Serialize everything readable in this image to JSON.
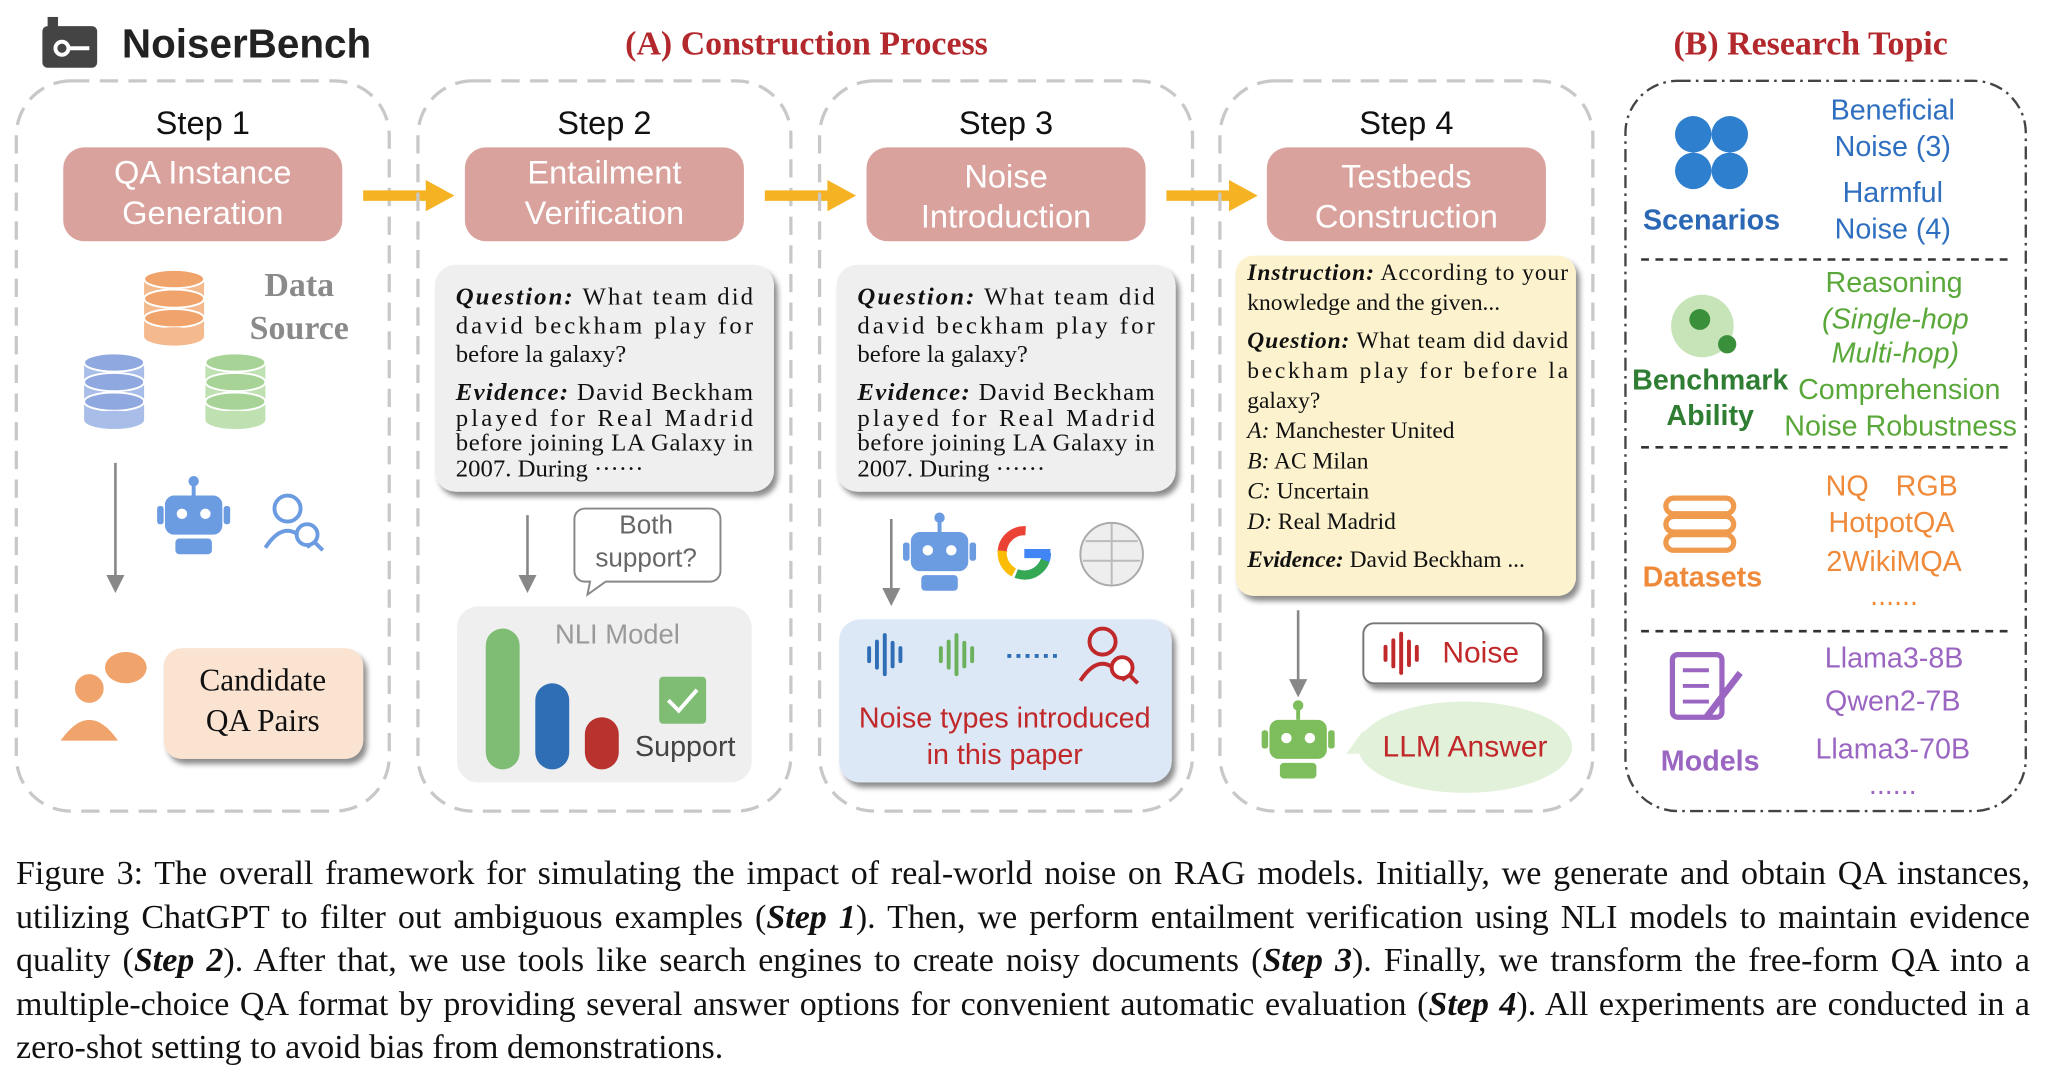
{
  "header": {
    "logo": "NoiserBench",
    "construction_title": "(A) Construction Process",
    "research_title": "(B) Research Topic"
  },
  "steps": [
    {
      "label": "Step 1",
      "title": [
        "QA Instance",
        "Generation"
      ],
      "data_source": [
        "Data",
        "Source"
      ],
      "output": [
        "Candidate",
        "QA Pairs"
      ]
    },
    {
      "label": "Step 2",
      "title": [
        "Entailment",
        "Verification"
      ],
      "card": {
        "question_label": "Question:",
        "question": [
          "What team did",
          "david beckham play for",
          "before la galaxy?"
        ],
        "evidence_label": "Evidence:",
        "evidence": [
          "David Beckham",
          "played for Real Madrid",
          "before joining LA Galaxy in",
          "2007. During ······"
        ]
      },
      "bubble": [
        "Both",
        "support?"
      ],
      "model": "NLI Model",
      "result": "Support"
    },
    {
      "label": "Step 3",
      "title": [
        "Noise",
        "Introduction"
      ],
      "card": {
        "question_label": "Question:",
        "question": [
          "What team did",
          "david beckham play for",
          "before la galaxy?"
        ],
        "evidence_label": "Evidence:",
        "evidence": [
          "David Beckham",
          "played for Real Madrid",
          "before joining LA Galaxy in",
          "2007. During ······"
        ]
      },
      "output": [
        "Noise types introduced",
        "in this paper"
      ]
    },
    {
      "label": "Step 4",
      "title": [
        "Testbeds",
        "Construction"
      ],
      "card": {
        "instruction_label": "Instruction:",
        "instruction": [
          "According to your",
          "knowledge and the given..."
        ],
        "question_label": "Question:",
        "question": [
          "What team did david",
          "beckham play for before la",
          "galaxy?"
        ],
        "options": [
          {
            "label": "A:",
            "text": "Manchester United"
          },
          {
            "label": "B:",
            "text": "AC Milan"
          },
          {
            "label": "C:",
            "text": "Uncertain"
          },
          {
            "label": "D:",
            "text": "Real Madrid"
          }
        ],
        "evidence_label": "Evidence:",
        "evidence": [
          "David Beckham ..."
        ]
      },
      "noise": "Noise",
      "answer": "LLM Answer"
    }
  ],
  "research": {
    "sections": [
      {
        "label": [
          "Scenarios"
        ],
        "items": [
          "Beneficial",
          "Noise (3)",
          "Harmful",
          "Noise (4)"
        ]
      },
      {
        "label": [
          "Benchmark",
          "Ability"
        ],
        "items": [
          "Reasoning",
          "(Single-hop",
          "Multi-hop)",
          "Comprehension",
          "Noise Robustness"
        ]
      },
      {
        "label": [
          "Datasets"
        ],
        "items": [
          "NQ",
          "RGB",
          "HotpotQA",
          "2WikiMQA",
          "......"
        ]
      },
      {
        "label": [
          "Models"
        ],
        "items": [
          "Llama3-8B",
          "Qwen2-7B",
          "Llama3-70B",
          "......"
        ]
      }
    ]
  },
  "caption": [
    "Figure 3: The overall framework for simulating the impact of real-world noise on RAG models. Initially, we generate and obtain QA instances, utilizing ChatGPT to filter out ambiguous examples (",
    "Step 1",
    "). Then, we perform entailment verification using NLI models to maintain evidence quality (",
    "Step 2",
    "). After that, we use tools like search engines to create noisy documents (",
    "Step 3",
    "). Finally, we transform the free-form QA into a multiple-choice QA format by providing several answer options for convenient automatic evaluation (",
    "Step 4",
    "). All experiments are conducted in a zero-shot setting to avoid bias from demonstrations."
  ]
}
